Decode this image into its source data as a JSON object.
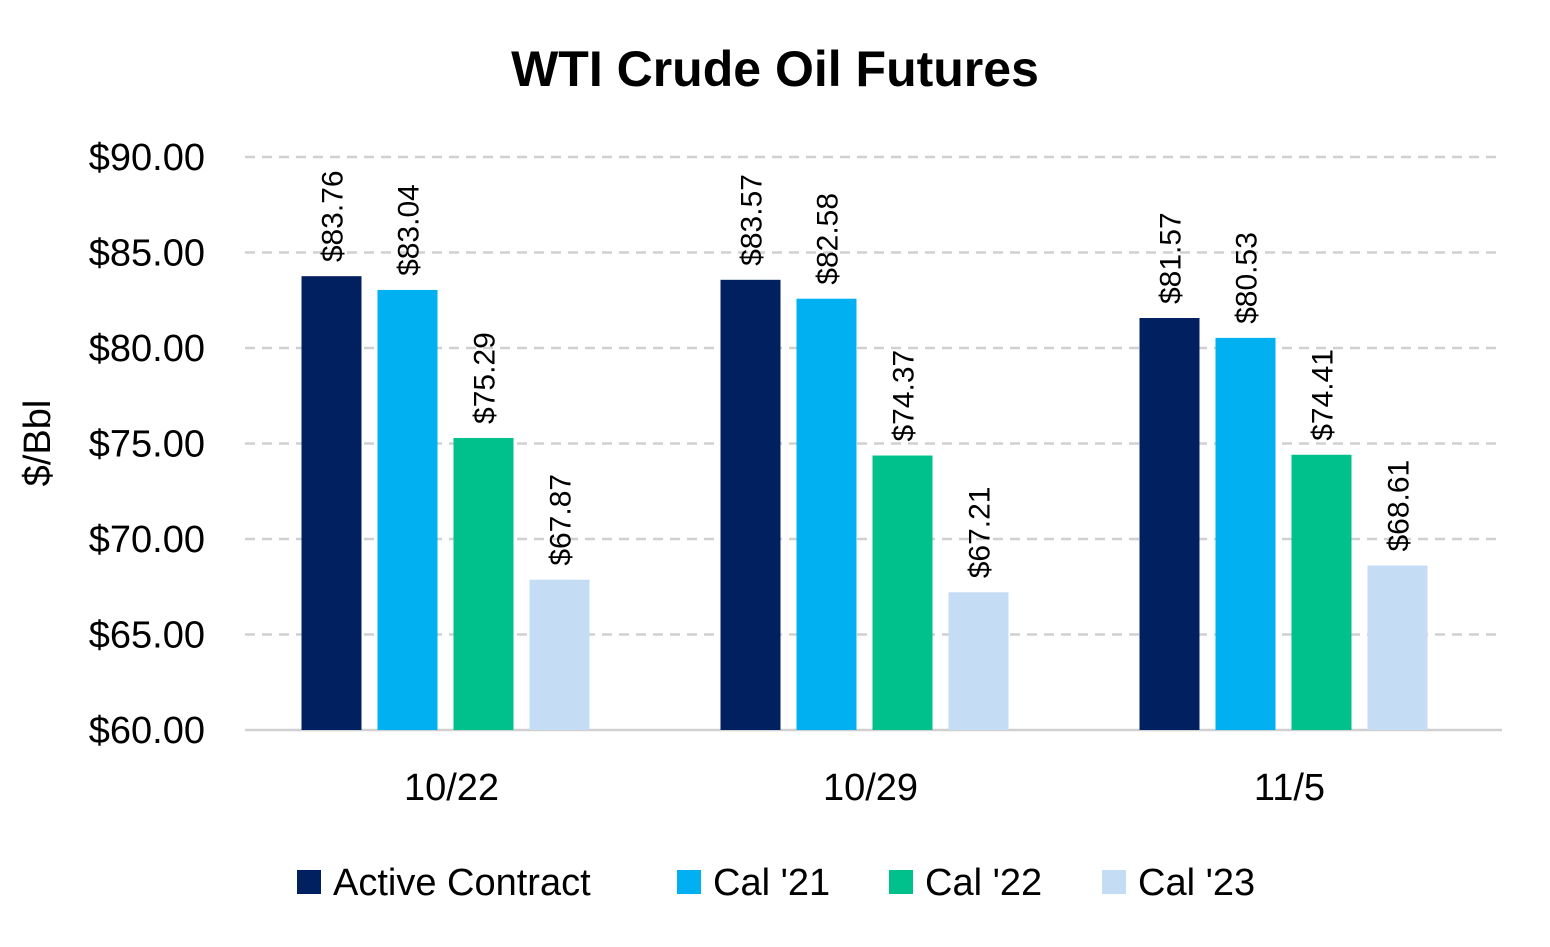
{
  "chart_data": {
    "type": "bar",
    "title": "WTI Crude Oil Futures",
    "xlabel": "",
    "ylabel": "$/Bbl",
    "ylim": [
      60,
      90
    ],
    "yticks": [
      "$60.00",
      "$65.00",
      "$70.00",
      "$75.00",
      "$80.00",
      "$85.00",
      "$90.00"
    ],
    "ytick_values": [
      60,
      65,
      70,
      75,
      80,
      85,
      90
    ],
    "grid": "horizontal dashed",
    "legend_position": "bottom",
    "categories": [
      "10/22",
      "10/29",
      "11/5"
    ],
    "series": [
      {
        "name": "Active Contract",
        "color": "#002060",
        "values": [
          83.76,
          83.57,
          81.57
        ],
        "labels": [
          "$83.76",
          "$83.57",
          "$81.57"
        ]
      },
      {
        "name": "Cal '21",
        "color": "#00B0F0",
        "values": [
          83.04,
          82.58,
          80.53
        ],
        "labels": [
          "$83.04",
          "$82.58",
          "$80.53"
        ]
      },
      {
        "name": "Cal '22",
        "color": "#00C08B",
        "values": [
          75.29,
          74.37,
          74.41
        ],
        "labels": [
          "$75.29",
          "$74.37",
          "$74.41"
        ]
      },
      {
        "name": "Cal '23",
        "color": "#C5DCF5",
        "values": [
          67.87,
          67.21,
          68.61
        ],
        "labels": [
          "$67.87",
          "$67.21",
          "$68.61"
        ]
      }
    ]
  }
}
